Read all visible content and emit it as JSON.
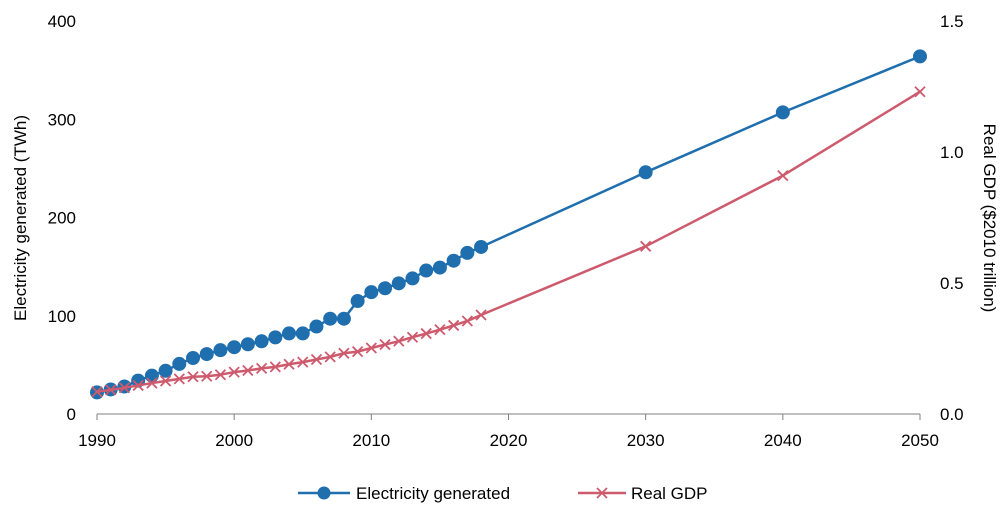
{
  "chart_data": {
    "type": "line",
    "xlim": [
      1990,
      2050
    ],
    "x_ticks": [
      1990,
      2000,
      2010,
      2020,
      2030,
      2040,
      2050
    ],
    "y_left": {
      "label": "Electricity generated (TWh)",
      "range": [
        0,
        400
      ],
      "ticks": [
        "0",
        "100",
        "200",
        "300",
        "400"
      ]
    },
    "y_right": {
      "label": "Real GDP ($2010 trillion)",
      "range": [
        0,
        1.5
      ],
      "ticks": [
        "0.0",
        "0.5",
        "1.0",
        "1.5"
      ]
    },
    "grid": false,
    "legend": {
      "position": "bottom"
    },
    "series": [
      {
        "name": "Electricity generated",
        "axis": "left",
        "color": "#1F6FAE",
        "marker": "circle",
        "points": [
          [
            1990,
            22
          ],
          [
            1991,
            25
          ],
          [
            1992,
            28
          ],
          [
            1993,
            34
          ],
          [
            1994,
            39
          ],
          [
            1995,
            44
          ],
          [
            1996,
            51
          ],
          [
            1997,
            57
          ],
          [
            1998,
            61
          ],
          [
            1999,
            65
          ],
          [
            2000,
            68
          ],
          [
            2001,
            71
          ],
          [
            2002,
            74
          ],
          [
            2003,
            78
          ],
          [
            2004,
            82
          ],
          [
            2005,
            82
          ],
          [
            2006,
            89
          ],
          [
            2007,
            97
          ],
          [
            2008,
            97
          ],
          [
            2009,
            115
          ],
          [
            2010,
            124
          ],
          [
            2011,
            128
          ],
          [
            2012,
            133
          ],
          [
            2013,
            138
          ],
          [
            2014,
            146
          ],
          [
            2015,
            149
          ],
          [
            2016,
            156
          ],
          [
            2017,
            164
          ],
          [
            2018,
            170
          ],
          [
            2030,
            246
          ],
          [
            2040,
            307
          ],
          [
            2050,
            364
          ]
        ]
      },
      {
        "name": "Real GDP",
        "axis": "right",
        "color": "#CE5A6E",
        "marker": "x",
        "points": [
          [
            1990,
            0.085
          ],
          [
            1991,
            0.092
          ],
          [
            1992,
            0.1
          ],
          [
            1993,
            0.109
          ],
          [
            1994,
            0.118
          ],
          [
            1995,
            0.126
          ],
          [
            1996,
            0.134
          ],
          [
            1997,
            0.142
          ],
          [
            1998,
            0.144
          ],
          [
            1999,
            0.15
          ],
          [
            2000,
            0.16
          ],
          [
            2001,
            0.166
          ],
          [
            2002,
            0.174
          ],
          [
            2003,
            0.18
          ],
          [
            2004,
            0.19
          ],
          [
            2005,
            0.198
          ],
          [
            2006,
            0.208
          ],
          [
            2007,
            0.218
          ],
          [
            2008,
            0.232
          ],
          [
            2009,
            0.238
          ],
          [
            2010,
            0.252
          ],
          [
            2011,
            0.265
          ],
          [
            2012,
            0.278
          ],
          [
            2013,
            0.293
          ],
          [
            2014,
            0.307
          ],
          [
            2015,
            0.322
          ],
          [
            2016,
            0.338
          ],
          [
            2017,
            0.355
          ],
          [
            2018,
            0.378
          ],
          [
            2030,
            0.64
          ],
          [
            2040,
            0.91
          ],
          [
            2050,
            1.23
          ]
        ]
      }
    ]
  }
}
